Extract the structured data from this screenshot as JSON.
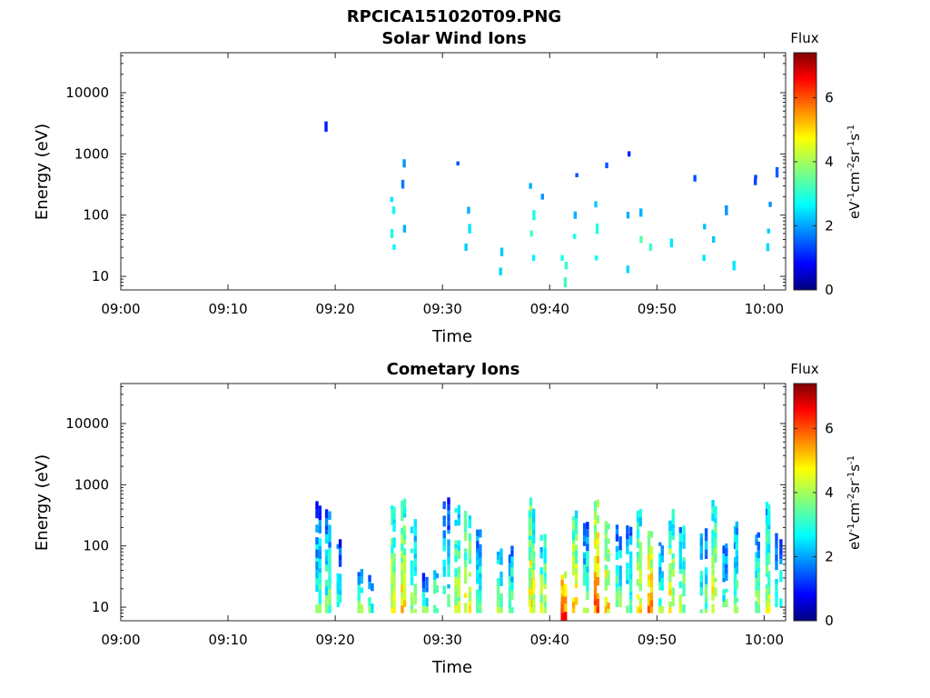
{
  "figure_title": "RPCICA151020T09.PNG",
  "chart_data": [
    {
      "type": "heatmap",
      "title": "Solar Wind Ions",
      "xlabel": "Time",
      "ylabel": "Energy (eV)",
      "x_ticks": [
        "09:00",
        "09:10",
        "09:20",
        "09:30",
        "09:40",
        "09:50",
        "10:00"
      ],
      "y_ticks": [
        "10",
        "100",
        "1000",
        "10000"
      ],
      "y_scale": "log",
      "xlim": [
        "09:00",
        "10:02"
      ],
      "ylim": [
        6,
        45000
      ],
      "colorbar": {
        "title": "Flux",
        "unit": "eV-1cm-2sr-1s-1",
        "ticks": [
          "0",
          "2",
          "4",
          "6"
        ],
        "range": [
          0,
          7.4
        ],
        "colormap": "jet"
      },
      "cells": [
        [
          "09:19",
          2800,
          1.1
        ],
        [
          "09:25",
          180,
          2.6
        ],
        [
          "09:25",
          120,
          2.8
        ],
        [
          "09:25",
          50,
          3.0
        ],
        [
          "09:26",
          60,
          2.2
        ],
        [
          "09:26",
          700,
          2.0
        ],
        [
          "09:25",
          30,
          2.7
        ],
        [
          "09:26",
          320,
          1.8
        ],
        [
          "09:31",
          700,
          1.5
        ],
        [
          "09:32",
          120,
          2.2
        ],
        [
          "09:32",
          60,
          2.6
        ],
        [
          "09:32",
          30,
          2.4
        ],
        [
          "09:35",
          25,
          2.4
        ],
        [
          "09:35",
          12,
          2.5
        ],
        [
          "09:38",
          100,
          3.0
        ],
        [
          "09:38",
          50,
          3.3
        ],
        [
          "09:38",
          20,
          2.7
        ],
        [
          "09:38",
          300,
          2.2
        ],
        [
          "09:39",
          200,
          2.0
        ],
        [
          "09:41",
          15,
          3.1
        ],
        [
          "09:41",
          8,
          3.2
        ],
        [
          "09:41",
          20,
          2.9
        ],
        [
          "09:42",
          100,
          2.2
        ],
        [
          "09:42",
          45,
          2.9
        ],
        [
          "09:42",
          450,
          1.5
        ],
        [
          "09:44",
          150,
          2.4
        ],
        [
          "09:44",
          60,
          3.0
        ],
        [
          "09:44",
          20,
          2.8
        ],
        [
          "09:45",
          650,
          1.5
        ],
        [
          "09:47",
          100,
          2.2
        ],
        [
          "09:47",
          13,
          2.5
        ],
        [
          "09:47",
          1000,
          1.2
        ],
        [
          "09:48",
          40,
          3.4
        ],
        [
          "09:48",
          110,
          2.2
        ],
        [
          "09:49",
          30,
          3.2
        ],
        [
          "09:51",
          35,
          2.6
        ],
        [
          "09:53",
          400,
          1.5
        ],
        [
          "09:54",
          65,
          2.3
        ],
        [
          "09:54",
          20,
          2.6
        ],
        [
          "09:55",
          40,
          2.4
        ],
        [
          "09:56",
          120,
          2.0
        ],
        [
          "09:57",
          15,
          2.6
        ],
        [
          "09:59",
          350,
          1.4
        ],
        [
          "09:59",
          420,
          1.4
        ],
        [
          "10:00",
          150,
          2.0
        ],
        [
          "10:00",
          55,
          2.4
        ],
        [
          "10:00",
          30,
          2.5
        ],
        [
          "10:01",
          500,
          1.6
        ]
      ]
    },
    {
      "type": "heatmap",
      "title": "Cometary Ions",
      "xlabel": "Time",
      "ylabel": "Energy (eV)",
      "x_ticks": [
        "09:00",
        "09:10",
        "09:20",
        "09:30",
        "09:40",
        "09:50",
        "10:00"
      ],
      "y_ticks": [
        "10",
        "100",
        "1000",
        "10000"
      ],
      "y_scale": "log",
      "xlim": [
        "09:00",
        "10:02"
      ],
      "ylim": [
        6,
        45000
      ],
      "colorbar": {
        "title": "Flux",
        "unit": "eV-1cm-2sr-1s-1",
        "ticks": [
          "0",
          "2",
          "4",
          "6"
        ],
        "range": [
          0,
          7.4
        ],
        "colormap": "jet"
      },
      "bursts": [
        [
          "09:18",
          8,
          400,
          3.3
        ],
        [
          "09:19",
          8,
          300,
          3.5
        ],
        [
          "09:20",
          10,
          100,
          3.0
        ],
        [
          "09:22",
          8,
          40,
          3.6
        ],
        [
          "09:23",
          8,
          30,
          3.2
        ],
        [
          "09:25",
          8,
          450,
          4.4
        ],
        [
          "09:26",
          8,
          450,
          4.8
        ],
        [
          "09:27",
          8,
          200,
          3.8
        ],
        [
          "09:28",
          8,
          30,
          3.4
        ],
        [
          "09:29",
          8,
          40,
          4.0
        ],
        [
          "09:30",
          10,
          500,
          3.2
        ],
        [
          "09:31",
          8,
          400,
          4.2
        ],
        [
          "09:32",
          8,
          300,
          4.6
        ],
        [
          "09:33",
          8,
          150,
          3.5
        ],
        [
          "09:35",
          8,
          80,
          3.8
        ],
        [
          "09:36",
          8,
          100,
          3.6
        ],
        [
          "09:38",
          8,
          450,
          5.2
        ],
        [
          "09:38",
          8,
          300,
          4.6
        ],
        [
          "09:39",
          8,
          150,
          4.2
        ],
        [
          "09:41",
          6,
          30,
          6.4
        ],
        [
          "09:41",
          6,
          20,
          6.0
        ],
        [
          "09:42",
          8,
          300,
          4.8
        ],
        [
          "09:43",
          8,
          200,
          3.6
        ],
        [
          "09:44",
          8,
          450,
          5.6
        ],
        [
          "09:45",
          8,
          300,
          4.8
        ],
        [
          "09:46",
          10,
          200,
          3.4
        ],
        [
          "09:47",
          8,
          200,
          3.6
        ],
        [
          "09:48",
          8,
          300,
          4.6
        ],
        [
          "09:49",
          8,
          150,
          5.4
        ],
        [
          "09:50",
          8,
          100,
          3.6
        ],
        [
          "09:51",
          8,
          300,
          4.6
        ],
        [
          "09:52",
          8,
          200,
          4.0
        ],
        [
          "09:54",
          8,
          150,
          3.5
        ],
        [
          "09:55",
          8,
          500,
          4.6
        ],
        [
          "09:56",
          10,
          100,
          3.3
        ],
        [
          "09:57",
          8,
          200,
          3.8
        ],
        [
          "09:59",
          8,
          150,
          3.8
        ],
        [
          "10:00",
          8,
          450,
          4.2
        ],
        [
          "10:01",
          10,
          120,
          3.4
        ]
      ]
    }
  ]
}
